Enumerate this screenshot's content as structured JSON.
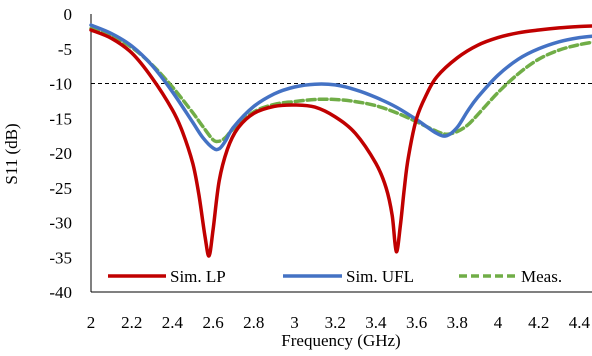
{
  "chart_data": {
    "type": "line",
    "title": "",
    "xlabel": "Frequency (GHz)",
    "ylabel": "S11 (dB)",
    "xlim": [
      2,
      4.5
    ],
    "ylim": [
      -40,
      0
    ],
    "x_ticks": [
      "2",
      "2.2",
      "2.4",
      "2.6",
      "2.8",
      "3",
      "3.2",
      "3.4",
      "3.6",
      "3.8",
      "4",
      "4.2",
      "4.4"
    ],
    "y_ticks": [
      "0",
      "-5",
      "-10",
      "-15",
      "-20",
      "-25",
      "-30",
      "-35",
      "-40"
    ],
    "grid": false,
    "reference_line": {
      "y": -10,
      "style": "dashed",
      "color": "#000000"
    },
    "legend_position": "bottom",
    "series": [
      {
        "name": "Sim. LP",
        "color": "#C00000",
        "style": "solid",
        "x": [
          2.0,
          2.1,
          2.2,
          2.3,
          2.4,
          2.45,
          2.5,
          2.53,
          2.56,
          2.58,
          2.6,
          2.63,
          2.67,
          2.72,
          2.8,
          2.9,
          3.0,
          3.1,
          3.2,
          3.3,
          3.4,
          3.45,
          3.48,
          3.5,
          3.52,
          3.54,
          3.56,
          3.6,
          3.65,
          3.7,
          3.8,
          3.9,
          4.0,
          4.1,
          4.2,
          4.3,
          4.4,
          4.5
        ],
        "y": [
          -2.3,
          -3.5,
          -5.6,
          -9.2,
          -13.8,
          -17.0,
          -21.5,
          -26.0,
          -32.0,
          -34.8,
          -31.0,
          -24.0,
          -19.5,
          -16.5,
          -14.3,
          -13.3,
          -13.1,
          -13.4,
          -14.8,
          -17.2,
          -21.5,
          -25.0,
          -29.0,
          -34.2,
          -30.5,
          -25.0,
          -20.5,
          -15.0,
          -11.5,
          -9.0,
          -6.3,
          -4.5,
          -3.4,
          -2.7,
          -2.3,
          -2.0,
          -1.8,
          -1.7
        ]
      },
      {
        "name": "Sim. UFL",
        "color": "#4472C4",
        "style": "solid",
        "x": [
          2.0,
          2.1,
          2.2,
          2.3,
          2.4,
          2.5,
          2.55,
          2.6,
          2.63,
          2.66,
          2.7,
          2.8,
          2.9,
          3.0,
          3.1,
          3.2,
          3.3,
          3.4,
          3.5,
          3.6,
          3.7,
          3.75,
          3.8,
          3.85,
          3.9,
          4.0,
          4.1,
          4.2,
          4.3,
          4.4,
          4.5
        ],
        "y": [
          -1.6,
          -2.8,
          -4.6,
          -7.4,
          -11.2,
          -15.6,
          -17.8,
          -19.3,
          -19.4,
          -18.3,
          -16.3,
          -13.3,
          -11.5,
          -10.5,
          -10.1,
          -10.2,
          -10.9,
          -12.0,
          -13.4,
          -15.2,
          -17.2,
          -17.5,
          -16.3,
          -14.0,
          -12.0,
          -8.8,
          -6.5,
          -5.0,
          -4.0,
          -3.4,
          -3.1
        ]
      },
      {
        "name": "Meas.",
        "color": "#70AD47",
        "style": "dashed",
        "x": [
          2.0,
          2.1,
          2.2,
          2.3,
          2.4,
          2.5,
          2.55,
          2.6,
          2.63,
          2.66,
          2.7,
          2.8,
          2.9,
          3.0,
          3.1,
          3.2,
          3.3,
          3.4,
          3.5,
          3.6,
          3.7,
          3.75,
          3.8,
          3.85,
          3.9,
          4.0,
          4.1,
          4.2,
          4.3,
          4.4,
          4.5
        ],
        "y": [
          -2.1,
          -3.1,
          -4.8,
          -7.3,
          -10.5,
          -14.2,
          -16.2,
          -18.1,
          -18.3,
          -17.8,
          -16.5,
          -14.1,
          -13.0,
          -12.6,
          -12.3,
          -12.3,
          -12.6,
          -13.2,
          -14.2,
          -15.5,
          -16.9,
          -17.3,
          -16.9,
          -16.0,
          -14.5,
          -11.3,
          -8.6,
          -6.5,
          -5.2,
          -4.4,
          -3.9
        ]
      }
    ]
  }
}
